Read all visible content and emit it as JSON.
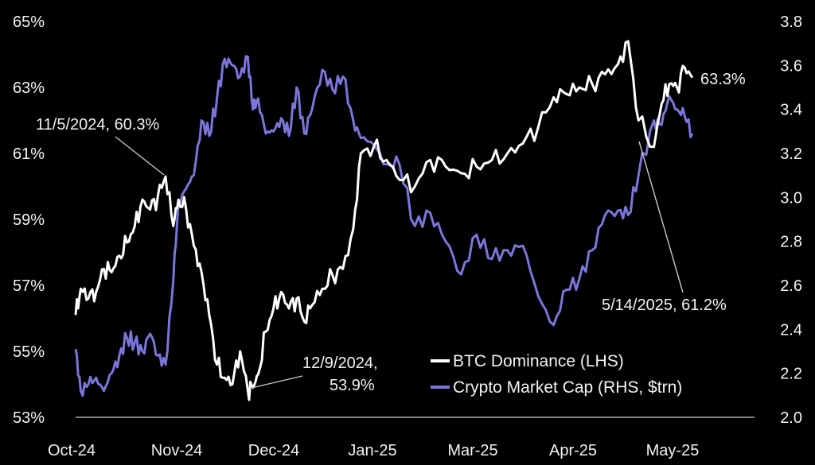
{
  "chart_data": {
    "type": "line",
    "title": "",
    "xlabel": "",
    "ylabel": "",
    "grid": false,
    "legend_position": "bottom-right",
    "x_ticks": [
      "Oct-24",
      "Nov-24",
      "Dec-24",
      "Jan-25",
      "Mar-25",
      "Apr-25",
      "May-25"
    ],
    "y_left": {
      "ticks": [
        "53%",
        "55%",
        "57%",
        "59%",
        "61%",
        "63%",
        "65%"
      ],
      "tick_values": [
        53,
        55,
        57,
        59,
        61,
        63,
        65
      ],
      "range": [
        53,
        65
      ]
    },
    "y_right": {
      "ticks": [
        "2.0",
        "2.2",
        "2.4",
        "2.6",
        "2.8",
        "3.0",
        "3.2",
        "3.4",
        "3.6",
        "3.8"
      ],
      "tick_values": [
        2.0,
        2.2,
        2.4,
        2.6,
        2.8,
        3.0,
        3.2,
        3.4,
        3.6,
        3.8
      ],
      "range": [
        2.0,
        3.8
      ]
    },
    "colors": {
      "btc": "#ffffff",
      "mcap": "#7b76d9",
      "background": "#000000"
    },
    "series": [
      {
        "name": "BTC Dominance (LHS)",
        "axis": "left",
        "unit": "%",
        "x": [
          "2024-10-01",
          "2024-10-03",
          "2024-10-06",
          "2024-10-09",
          "2024-10-12",
          "2024-10-15",
          "2024-10-18",
          "2024-10-21",
          "2024-10-24",
          "2024-10-27",
          "2024-10-30",
          "2024-11-02",
          "2024-11-05",
          "2024-11-08",
          "2024-11-10",
          "2024-11-13",
          "2024-11-16",
          "2024-11-19",
          "2024-11-22",
          "2024-11-25",
          "2024-11-28",
          "2024-12-01",
          "2024-12-04",
          "2024-12-07",
          "2024-12-09",
          "2024-12-11",
          "2024-12-14",
          "2024-12-17",
          "2024-12-20",
          "2024-12-23",
          "2024-12-26",
          "2024-12-29",
          "2025-01-01",
          "2025-01-05",
          "2025-01-09",
          "2025-01-13",
          "2025-01-17",
          "2025-01-20",
          "2025-01-25",
          "2025-01-30",
          "2025-02-04",
          "2025-02-10",
          "2025-02-16",
          "2025-02-22",
          "2025-02-28",
          "2025-03-06",
          "2025-03-12",
          "2025-03-18",
          "2025-03-24",
          "2025-03-30",
          "2025-04-05",
          "2025-04-10",
          "2025-04-15",
          "2025-04-20",
          "2025-04-25",
          "2025-04-30",
          "2025-05-04",
          "2025-05-08",
          "2025-05-14",
          "2025-05-17",
          "2025-05-20",
          "2025-05-23",
          "2025-05-26",
          "2025-05-29"
        ],
        "y": [
          56.1,
          56.9,
          56.6,
          56.8,
          57.5,
          57.4,
          57.9,
          58.3,
          58.8,
          59.6,
          59.3,
          59.7,
          60.3,
          58.8,
          59.6,
          59.3,
          58.2,
          57.4,
          56.1,
          54.6,
          54.2,
          54.0,
          55.0,
          53.8,
          53.9,
          54.3,
          55.6,
          56.3,
          56.8,
          56.3,
          56.6,
          55.9,
          56.4,
          56.9,
          57.3,
          57.5,
          58.7,
          61.0,
          61.2,
          60.8,
          60.2,
          60.0,
          60.8,
          60.6,
          60.4,
          60.6,
          60.8,
          61.0,
          61.3,
          61.8,
          62.7,
          62.8,
          63.0,
          63.1,
          63.4,
          63.7,
          64.4,
          62.0,
          61.2,
          62.5,
          63.1,
          63.0,
          63.6,
          63.3
        ]
      },
      {
        "name": "Crypto Market Cap (RHS, $trn)",
        "axis": "right",
        "unit": "$trn",
        "x": [
          "2024-10-01",
          "2024-10-03",
          "2024-10-06",
          "2024-10-09",
          "2024-10-12",
          "2024-10-15",
          "2024-10-18",
          "2024-10-21",
          "2024-10-24",
          "2024-10-27",
          "2024-10-30",
          "2024-11-02",
          "2024-11-05",
          "2024-11-08",
          "2024-11-10",
          "2024-11-13",
          "2024-11-16",
          "2024-11-19",
          "2024-11-22",
          "2024-11-25",
          "2024-11-28",
          "2024-12-01",
          "2024-12-04",
          "2024-12-07",
          "2024-12-09",
          "2024-12-11",
          "2024-12-14",
          "2024-12-17",
          "2024-12-20",
          "2024-12-23",
          "2024-12-26",
          "2024-12-29",
          "2025-01-01",
          "2025-01-05",
          "2025-01-09",
          "2025-01-13",
          "2025-01-17",
          "2025-01-20",
          "2025-01-25",
          "2025-01-30",
          "2025-02-04",
          "2025-02-10",
          "2025-02-16",
          "2025-02-22",
          "2025-02-28",
          "2025-03-06",
          "2025-03-12",
          "2025-03-18",
          "2025-03-24",
          "2025-03-30",
          "2025-04-05",
          "2025-04-10",
          "2025-04-15",
          "2025-04-20",
          "2025-04-25",
          "2025-04-30",
          "2025-05-04",
          "2025-05-08",
          "2025-05-14",
          "2025-05-17",
          "2025-05-20",
          "2025-05-23",
          "2025-05-26",
          "2025-05-29"
        ],
        "y": [
          2.31,
          2.12,
          2.15,
          2.18,
          2.12,
          2.2,
          2.28,
          2.36,
          2.34,
          2.3,
          2.38,
          2.28,
          2.24,
          2.62,
          2.98,
          3.04,
          3.1,
          3.35,
          3.28,
          3.45,
          3.63,
          3.6,
          3.55,
          3.64,
          3.4,
          3.45,
          3.29,
          3.3,
          3.36,
          3.28,
          3.5,
          3.29,
          3.4,
          3.58,
          3.49,
          3.55,
          3.35,
          3.27,
          3.24,
          3.15,
          3.15,
          2.87,
          2.93,
          2.8,
          2.65,
          2.83,
          2.72,
          2.76,
          2.78,
          2.55,
          2.42,
          2.58,
          2.63,
          2.76,
          2.92,
          2.94,
          2.92,
          3.1,
          3.35,
          3.33,
          3.46,
          3.4,
          3.37,
          3.29
        ]
      }
    ],
    "annotations": [
      {
        "series": 0,
        "x": "2024-11-05",
        "y": 60.3,
        "line1": "11/5/2024, 60.3%",
        "line2": ""
      },
      {
        "series": 0,
        "x": "2024-12-09",
        "y": 53.9,
        "line1": "12/9/2024,",
        "line2": "53.9%"
      },
      {
        "series": 0,
        "x": "2025-05-14",
        "y": 61.2,
        "line1": "5/14/2025, 61.2%",
        "line2": ""
      },
      {
        "series": 0,
        "x": "2025-05-29",
        "y": 63.3,
        "line1": "63.3%",
        "line2": ""
      }
    ]
  }
}
